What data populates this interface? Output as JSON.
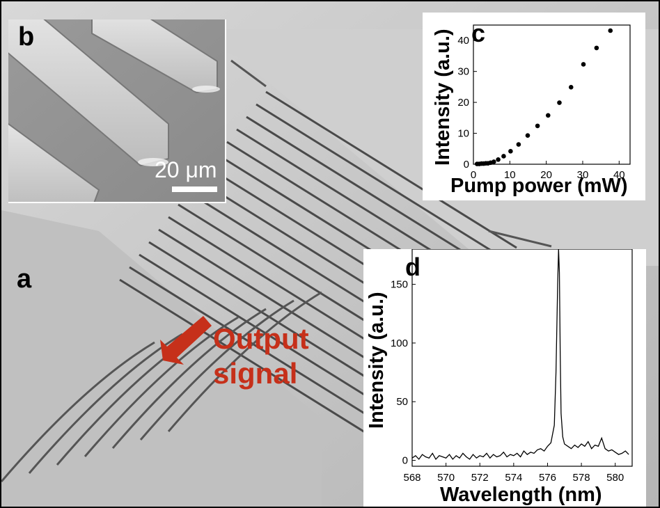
{
  "panels": {
    "a": "a",
    "b": "b",
    "c": "c",
    "d": "d"
  },
  "callout": {
    "line1": "Output",
    "line2": "signal",
    "color": "#c6301a"
  },
  "scale_bar": {
    "label": "20 μm"
  },
  "chart_data": [
    {
      "panel": "c",
      "type": "scatter",
      "xlabel": "Pump power (mW)",
      "ylabel": "Intensity (a.u.)",
      "xlim": [
        0,
        43
      ],
      "ylim": [
        0,
        45
      ],
      "xticks": [
        0,
        10,
        20,
        30,
        40
      ],
      "yticks": [
        0,
        10,
        20,
        30,
        40
      ],
      "grid": false,
      "series": [
        {
          "x": [
            1.0,
            1.6,
            2.2,
            2.8,
            3.4,
            4.0,
            4.7,
            5.6,
            6.8,
            8.3,
            10.2,
            12.4,
            14.9,
            17.6,
            20.5,
            23.6,
            26.8,
            30.2,
            33.8,
            37.6
          ],
          "y": [
            0.1,
            0.1,
            0.2,
            0.2,
            0.3,
            0.3,
            0.5,
            0.8,
            1.5,
            2.6,
            4.2,
            6.4,
            9.3,
            12.4,
            15.8,
            19.9,
            24.9,
            32.3,
            37.6,
            43.2
          ]
        }
      ]
    },
    {
      "panel": "d",
      "type": "line",
      "xlabel": "Wavelength (nm)",
      "ylabel": "Intensity (a.u.)",
      "xlim": [
        568,
        581
      ],
      "ylim": [
        -5,
        180
      ],
      "xticks": [
        568,
        570,
        572,
        574,
        576,
        578,
        580
      ],
      "yticks": [
        0,
        50,
        100,
        150
      ],
      "grid": false,
      "series": [
        {
          "x": [
            568.0,
            568.2,
            568.4,
            568.6,
            568.8,
            569.0,
            569.2,
            569.4,
            569.6,
            569.8,
            570.0,
            570.2,
            570.4,
            570.6,
            570.8,
            571.0,
            571.2,
            571.4,
            571.6,
            571.8,
            572.0,
            572.2,
            572.4,
            572.6,
            572.8,
            573.0,
            573.2,
            573.4,
            573.6,
            573.8,
            574.0,
            574.2,
            574.4,
            574.6,
            574.8,
            575.0,
            575.2,
            575.4,
            575.6,
            575.8,
            576.0,
            576.2,
            576.4,
            576.5,
            576.6,
            576.65,
            576.7,
            576.75,
            576.8,
            576.9,
            577.0,
            577.2,
            577.4,
            577.6,
            577.8,
            578.0,
            578.2,
            578.4,
            578.6,
            578.8,
            579.0,
            579.2,
            579.4,
            579.6,
            579.8,
            580.0,
            580.2,
            580.4,
            580.6,
            580.8
          ],
          "y": [
            2,
            4,
            1,
            5,
            3,
            2,
            6,
            1,
            4,
            3,
            2,
            5,
            1,
            4,
            2,
            6,
            3,
            1,
            5,
            2,
            4,
            3,
            6,
            2,
            5,
            3,
            4,
            7,
            3,
            5,
            4,
            6,
            3,
            8,
            5,
            7,
            6,
            9,
            10,
            8,
            12,
            15,
            30,
            75,
            150,
            185,
            160,
            90,
            40,
            20,
            14,
            12,
            10,
            13,
            11,
            14,
            12,
            16,
            10,
            13,
            12,
            19,
            10,
            8,
            9,
            7,
            5,
            6,
            8,
            5
          ]
        }
      ]
    }
  ]
}
